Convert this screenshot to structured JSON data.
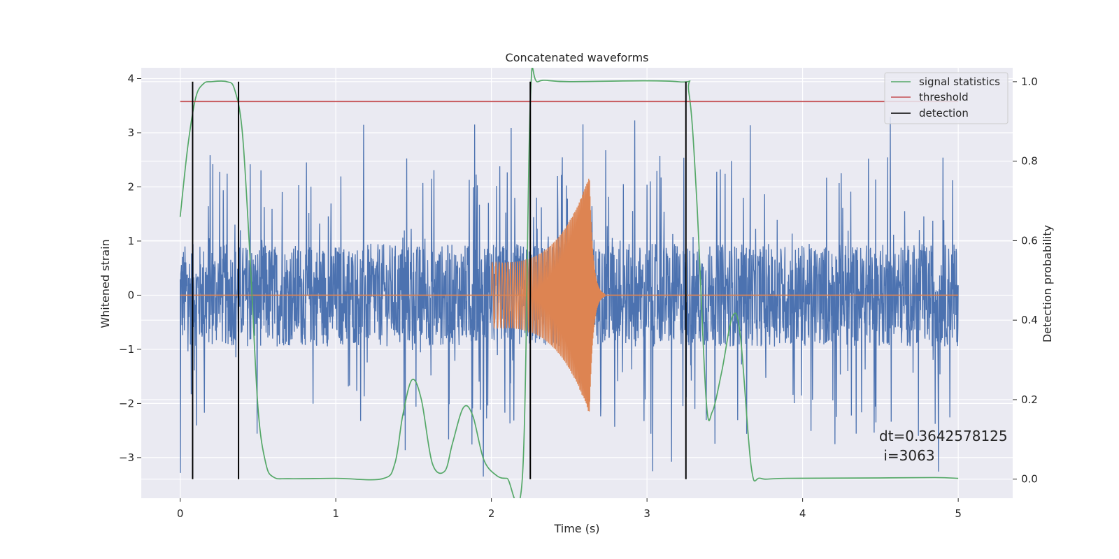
{
  "chart_data": {
    "type": "line",
    "title": "Concatenated waveforms",
    "xlabel": "Time (s)",
    "ylabel": "Whitened strain",
    "ylabel_right": "Detection probability",
    "xlim": [
      -0.25,
      5.35
    ],
    "ylim": [
      -3.75,
      4.2
    ],
    "ylim_right": [
      -0.048,
      1.035
    ],
    "x_ticks": [
      0,
      1,
      2,
      3,
      4,
      5
    ],
    "x_tick_labels": [
      "0",
      "1",
      "2",
      "3",
      "4",
      "5"
    ],
    "y_ticks": [
      -3,
      -2,
      -1,
      0,
      1,
      2,
      3,
      4
    ],
    "y_tick_labels": [
      "−3",
      "−2",
      "−1",
      "0",
      "1",
      "2",
      "3",
      "4"
    ],
    "y_right_ticks": [
      0.0,
      0.2,
      0.4,
      0.6,
      0.8,
      1.0
    ],
    "y_right_tick_labels": [
      "0.0",
      "0.2",
      "0.4",
      "0.6",
      "0.8",
      "1.0"
    ],
    "grid": true,
    "legend_position": "top-right",
    "legend": [
      {
        "label": "signal statistics",
        "color": "#55a868"
      },
      {
        "label": "threshold",
        "color": "#c44e52"
      },
      {
        "label": "detection",
        "color": "#000000"
      }
    ],
    "series": [
      {
        "name": "whitened strain (noise)",
        "axis": "left",
        "color": "#4c72b0",
        "x_range": [
          0,
          5
        ],
        "envelope": "dense noise approx. ±0.9, spikes up to about +3.4 / −3.3"
      },
      {
        "name": "injected waveform",
        "axis": "left",
        "color": "#dd8452",
        "x_range": [
          2.0,
          2.65
        ],
        "envelope": "chirp, amplitude rising from ~0.6 to ~2.2, ringdown near 2.63 s, zero elsewhere"
      },
      {
        "name": "signal statistics",
        "axis": "right",
        "color": "#55a868",
        "x": [
          0.0,
          0.05,
          0.1,
          0.15,
          0.2,
          0.3,
          0.35,
          0.4,
          0.45,
          0.5,
          0.55,
          0.6,
          0.7,
          1.0,
          1.3,
          1.38,
          1.43,
          1.49,
          1.55,
          1.62,
          1.7,
          1.75,
          1.82,
          1.88,
          1.95,
          2.03,
          2.1,
          2.2,
          2.25,
          2.3,
          2.5,
          3.2,
          3.27,
          3.32,
          3.38,
          3.42,
          3.48,
          3.55,
          3.6,
          3.67,
          3.73,
          3.9,
          4.5,
          4.85,
          5.0
        ],
        "y": [
          0.66,
          0.84,
          0.96,
          0.995,
          1.0,
          1.0,
          0.98,
          0.87,
          0.55,
          0.18,
          0.04,
          0.005,
          0.001,
          0.002,
          0.001,
          0.04,
          0.16,
          0.25,
          0.2,
          0.04,
          0.02,
          0.09,
          0.18,
          0.16,
          0.05,
          0.01,
          0.002,
          0.01,
          0.95,
          1.0,
          1.0,
          1.0,
          0.97,
          0.7,
          0.2,
          0.17,
          0.27,
          0.41,
          0.36,
          0.03,
          0.002,
          0.002,
          0.003,
          0.004,
          0.002
        ]
      },
      {
        "name": "threshold",
        "axis": "right",
        "color": "#c44e52",
        "x": [
          0,
          5
        ],
        "y": [
          0.95,
          0.95
        ]
      }
    ],
    "detections_x": [
      0.08,
      0.375,
      2.25,
      3.25
    ],
    "annotation_lines": [
      "dt=0.3642578125",
      " i=3063"
    ]
  }
}
